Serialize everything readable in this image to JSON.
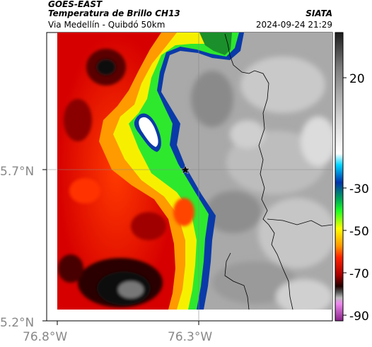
{
  "header": {
    "source": "GOES-EAST",
    "product": "Temperatura de Brillo CH13",
    "region": "Via Medellín - Quibdó 50km",
    "agency": "SIATA",
    "datetime": "2024-09-24 21:29"
  },
  "map": {
    "lat_labels": [
      "5.7°N",
      "5.2°N"
    ],
    "lon_labels": [
      "76.8°W",
      "76.3°W"
    ],
    "marker": "star-marker"
  },
  "colorbar": {
    "tick_labels": [
      "20",
      "-30",
      "-50",
      "-70",
      "-90"
    ],
    "stops": [
      {
        "color": "#1c1c1c"
      },
      {
        "color": "#7a7a7a"
      },
      {
        "color": "#d6d6d6"
      },
      {
        "color": "#ffffff"
      },
      {
        "color": "#00d4ff"
      },
      {
        "color": "#0033aa"
      },
      {
        "color": "#00aa55"
      },
      {
        "color": "#22ff22"
      },
      {
        "color": "#ffff00"
      },
      {
        "color": "#ff9900"
      },
      {
        "color": "#ff2200"
      },
      {
        "color": "#aa0000"
      },
      {
        "color": "#220000"
      },
      {
        "color": "#555555"
      },
      {
        "color": "#bbbbbb"
      },
      {
        "color": "#ee88ee"
      },
      {
        "color": "#882288"
      }
    ]
  }
}
